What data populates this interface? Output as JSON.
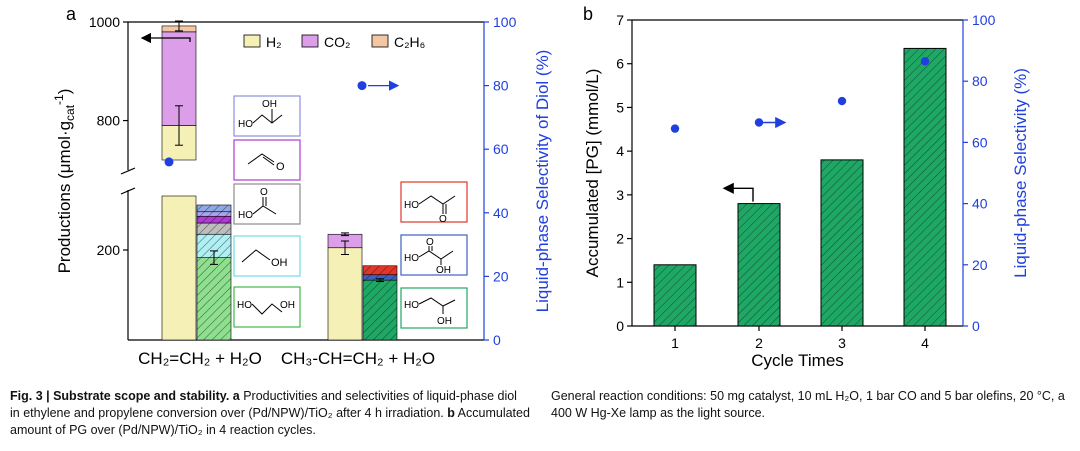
{
  "chart_data": [
    {
      "panel_label": "a",
      "type": "bar",
      "categories": [
        "CH₂=CH₂ + H₂O",
        "CH₃-CH=CH₂ + H₂O"
      ],
      "ylabel": "Productions (μmol·g",
      "ylabel_sub": "cat",
      "ylabel_sup": "-1",
      "ylabel_close": ")",
      "y2label": "Liquid-phase Selectivity of Diol (%)",
      "ylim_lower": [
        0,
        320
      ],
      "ylim_upper": [
        720,
        1000
      ],
      "y_ticks": [
        200,
        800,
        1000
      ],
      "y2lim": [
        0,
        100
      ],
      "y2_ticks": [
        0,
        20,
        40,
        60,
        80,
        100
      ],
      "legend": [
        {
          "label": "H₂",
          "color": "#f5f0b5"
        },
        {
          "label": "CO₂",
          "color": "#dc9ee8"
        },
        {
          "label": "C₂H₆",
          "color": "#f3c6a4"
        }
      ],
      "gas_bars": [
        {
          "category": 0,
          "H2": 790,
          "CO2": 190,
          "C2H6": 12,
          "error_total": 10,
          "error_h2": 40
        },
        {
          "category": 1,
          "H2": 205,
          "CO2": 30,
          "C2H6": 0,
          "error_total": 3,
          "error_h2": 15
        }
      ],
      "liquid_bars": [
        {
          "category": 0,
          "segments": [
            {
              "product": "ethylene glycol",
              "value": 183,
              "color": "#8ee08e",
              "hatch": true
            },
            {
              "product": "ethanol",
              "value": 52,
              "color": "#aef0f4",
              "hatch": true
            },
            {
              "product": "acetic acid",
              "value": 25,
              "color": "#bdbdbd",
              "hatch": true
            },
            {
              "product": "acetaldehyde",
              "value": 15,
              "color": "#b13ad6",
              "hatch": true
            },
            {
              "product": "diol isomer",
              "value": 10,
              "color": "#a9a6f1",
              "hatch": true
            },
            {
              "product": "other",
              "value": 15,
              "color": "#8fa8e6",
              "hatch": true
            }
          ],
          "error": 15
        },
        {
          "category": 1,
          "segments": [
            {
              "product": "1,2-propanediol",
              "value": 133,
              "color": "#1fa865",
              "hatch": true
            },
            {
              "product": "lactic acid",
              "value": 12,
              "color": "#3e5fc6",
              "hatch": true
            },
            {
              "product": "hydroxyacetone",
              "value": 20,
              "color": "#e0372b",
              "hatch": true
            }
          ],
          "error": 3
        }
      ],
      "selectivity": [
        {
          "category": 0,
          "value": 56
        },
        {
          "category": 1,
          "value": 80
        }
      ],
      "molecule_boxes": [
        {
          "name": "ethanol-hemiacetal-box",
          "color": "#8f8fe0"
        },
        {
          "name": "acetaldehyde-box",
          "color": "#b13ad6"
        },
        {
          "name": "acetic-acid-box",
          "color": "#8c8c8c"
        },
        {
          "name": "ethanol-box",
          "color": "#6fdde8"
        },
        {
          "name": "ethylene-glycol-box",
          "color": "#3fb94a"
        },
        {
          "name": "hydroxyacetone-box",
          "color": "#e0372b"
        },
        {
          "name": "lactic-acid-box",
          "color": "#3e5fc6"
        },
        {
          "name": "propylene-glycol-box",
          "color": "#1fa865"
        }
      ],
      "atom_labels": {
        "oh": "OH",
        "ho": "HO",
        "o": "O"
      }
    },
    {
      "panel_label": "b",
      "type": "bar",
      "categories": [
        "1",
        "2",
        "3",
        "4"
      ],
      "values": [
        1.4,
        2.8,
        3.8,
        6.35
      ],
      "bar_color": "#1fa865",
      "xlabel": "Cycle Times",
      "ylabel": "Accumulated [PG]  (mmol/L)",
      "y2label": "Liquid-phase Selectivity (%)",
      "ylim": [
        0,
        7
      ],
      "y_ticks": [
        0,
        1,
        2,
        3,
        4,
        5,
        6,
        7
      ],
      "y2lim": [
        0,
        100
      ],
      "y2_ticks": [
        0,
        20,
        40,
        60,
        80,
        100
      ],
      "selectivity": [
        64.5,
        66.5,
        73.5,
        86.5
      ]
    }
  ],
  "caption_left": {
    "prefix": "Fig. 3 | Substrate scope and stability. a",
    "text": " Productivities and selectivities of liquid-phase diol in ethylene and propylene conversion over (Pd/NPW)/TiO₂ after 4 h irradiation. ",
    "b_label": "b",
    "b_text": " Accumulated amount of PG over (Pd/NPW)/TiO₂ in 4 reaction cycles."
  },
  "caption_right": "General reaction conditions: 50 mg catalyst, 10 mL H₂O, 1 bar CO and 5 bar olefins, 20 °C, a 400 W Hg-Xe lamp as the light source."
}
